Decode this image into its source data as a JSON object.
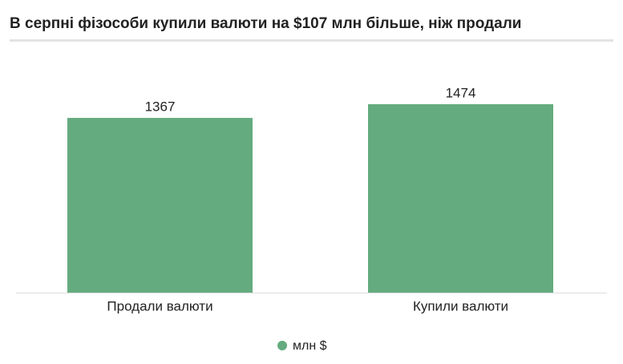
{
  "chart_data": {
    "type": "bar",
    "title": "В серпні фізособи купили валюти на $107 млн більше, ніж продали",
    "categories": [
      "Продали валюти",
      "Купили валюти"
    ],
    "series": [
      {
        "name": "млн $",
        "color": "#64ab7f",
        "values": [
          1367,
          1474
        ]
      }
    ]
  }
}
